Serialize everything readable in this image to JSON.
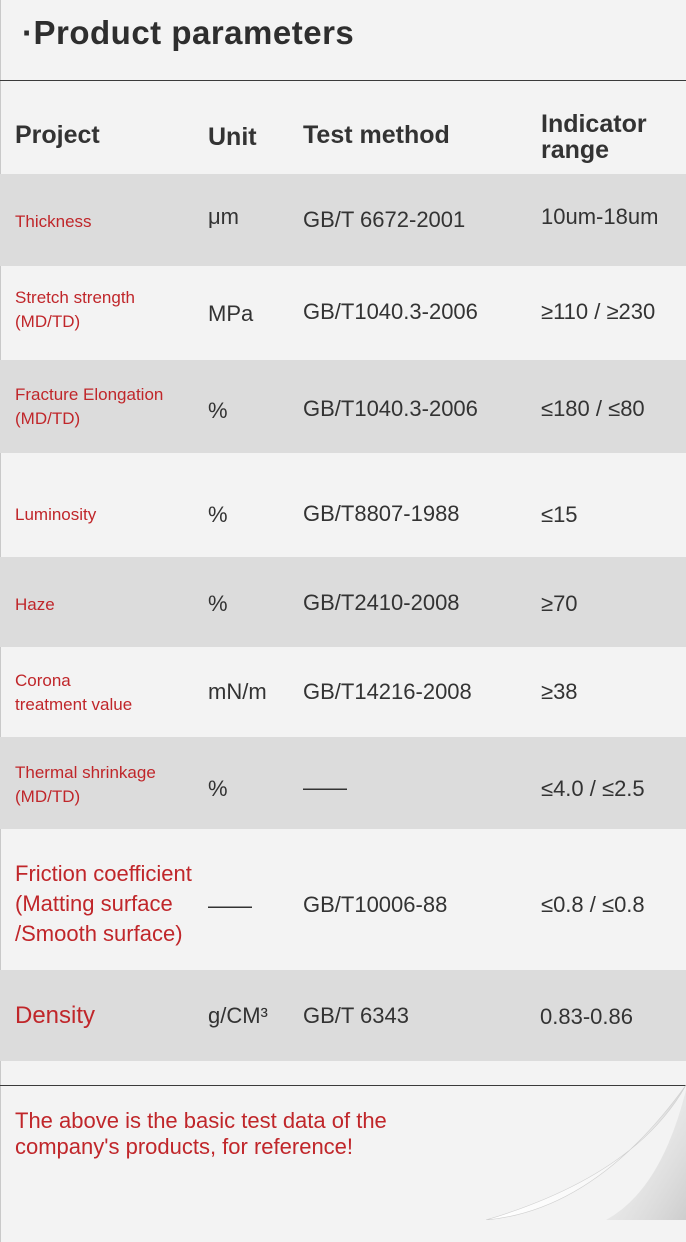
{
  "title": "·Product parameters",
  "headers": {
    "project": "Project",
    "unit": "Unit",
    "method": "Test method",
    "range_line1": "Indicator",
    "range_line2": "range"
  },
  "rows": [
    {
      "project_line1": "Thickness",
      "project_line2": "",
      "unit": "μm",
      "method": "GB/T 6672-2001",
      "range": "10um-18um"
    },
    {
      "project_line1": "Stretch strength",
      "project_line2": "(MD/TD)",
      "unit": "MPa",
      "method": "GB/T1040.3-2006",
      "range": "≥110 / ≥230"
    },
    {
      "project_line1": "Fracture Elongation",
      "project_line2": "(MD/TD)",
      "unit": "%",
      "method": "GB/T1040.3-2006",
      "range": "≤180 / ≤80"
    },
    {
      "project_line1": "Luminosity",
      "project_line2": "",
      "unit": "%",
      "method": "GB/T8807-1988",
      "range": "≤15"
    },
    {
      "project_line1": "Haze",
      "project_line2": "",
      "unit": "%",
      "method": "GB/T2410-2008",
      "range": "≥70"
    },
    {
      "project_line1": "Corona",
      "project_line2": "treatment value",
      "unit": "mN/m",
      "method": "GB/T14216-2008",
      "range": "≥38"
    },
    {
      "project_line1": "Thermal shrinkage",
      "project_line2": "(MD/TD)",
      "unit": "%",
      "method": "——",
      "range": "≤4.0 / ≤2.5"
    },
    {
      "project_line1": "Friction coefficient",
      "project_line2": "(Matting surface",
      "project_line3": "/Smooth surface)",
      "unit": "——",
      "method": "GB/T10006-88",
      "range": "≤0.8 / ≤0.8"
    },
    {
      "project_line1": "Density",
      "project_line2": "",
      "unit": "g/CM³",
      "method": "GB/T 6343",
      "range": "0.83-0.86"
    }
  ],
  "note_line1": "The above is the basic test data of the",
  "note_line2": "company's products, for reference!",
  "colors": {
    "accent_red": "#c0262a",
    "row_shade": "#dcdcdc",
    "background": "#f3f3f3"
  }
}
